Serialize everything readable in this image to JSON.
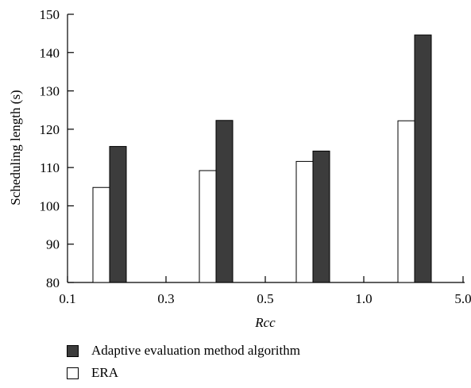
{
  "chart_data": {
    "type": "bar",
    "title": "",
    "xlabel": "Rcc",
    "ylabel": "Scheduling length (s)",
    "ylim": [
      80,
      150
    ],
    "y_ticks": [
      "80",
      "90",
      "100",
      "110",
      "120",
      "130",
      "140",
      "150"
    ],
    "x_ticks": [
      "0.1",
      "0.3",
      "0.5",
      "1.0",
      "5.0"
    ],
    "categories": [
      "0.1–0.3",
      "0.3–0.5",
      "0.5–1.0",
      "1.0–5.0"
    ],
    "series": [
      {
        "name": "ERA",
        "color": "#ffffff",
        "values": [
          104.8,
          109.2,
          111.6,
          122.2
        ]
      },
      {
        "name": "Adaptive evaluation method algorithm",
        "color": "#3c3c3c",
        "values": [
          115.5,
          122.3,
          114.3,
          144.6
        ]
      }
    ],
    "grid": false,
    "legend_position": "bottom-left"
  }
}
